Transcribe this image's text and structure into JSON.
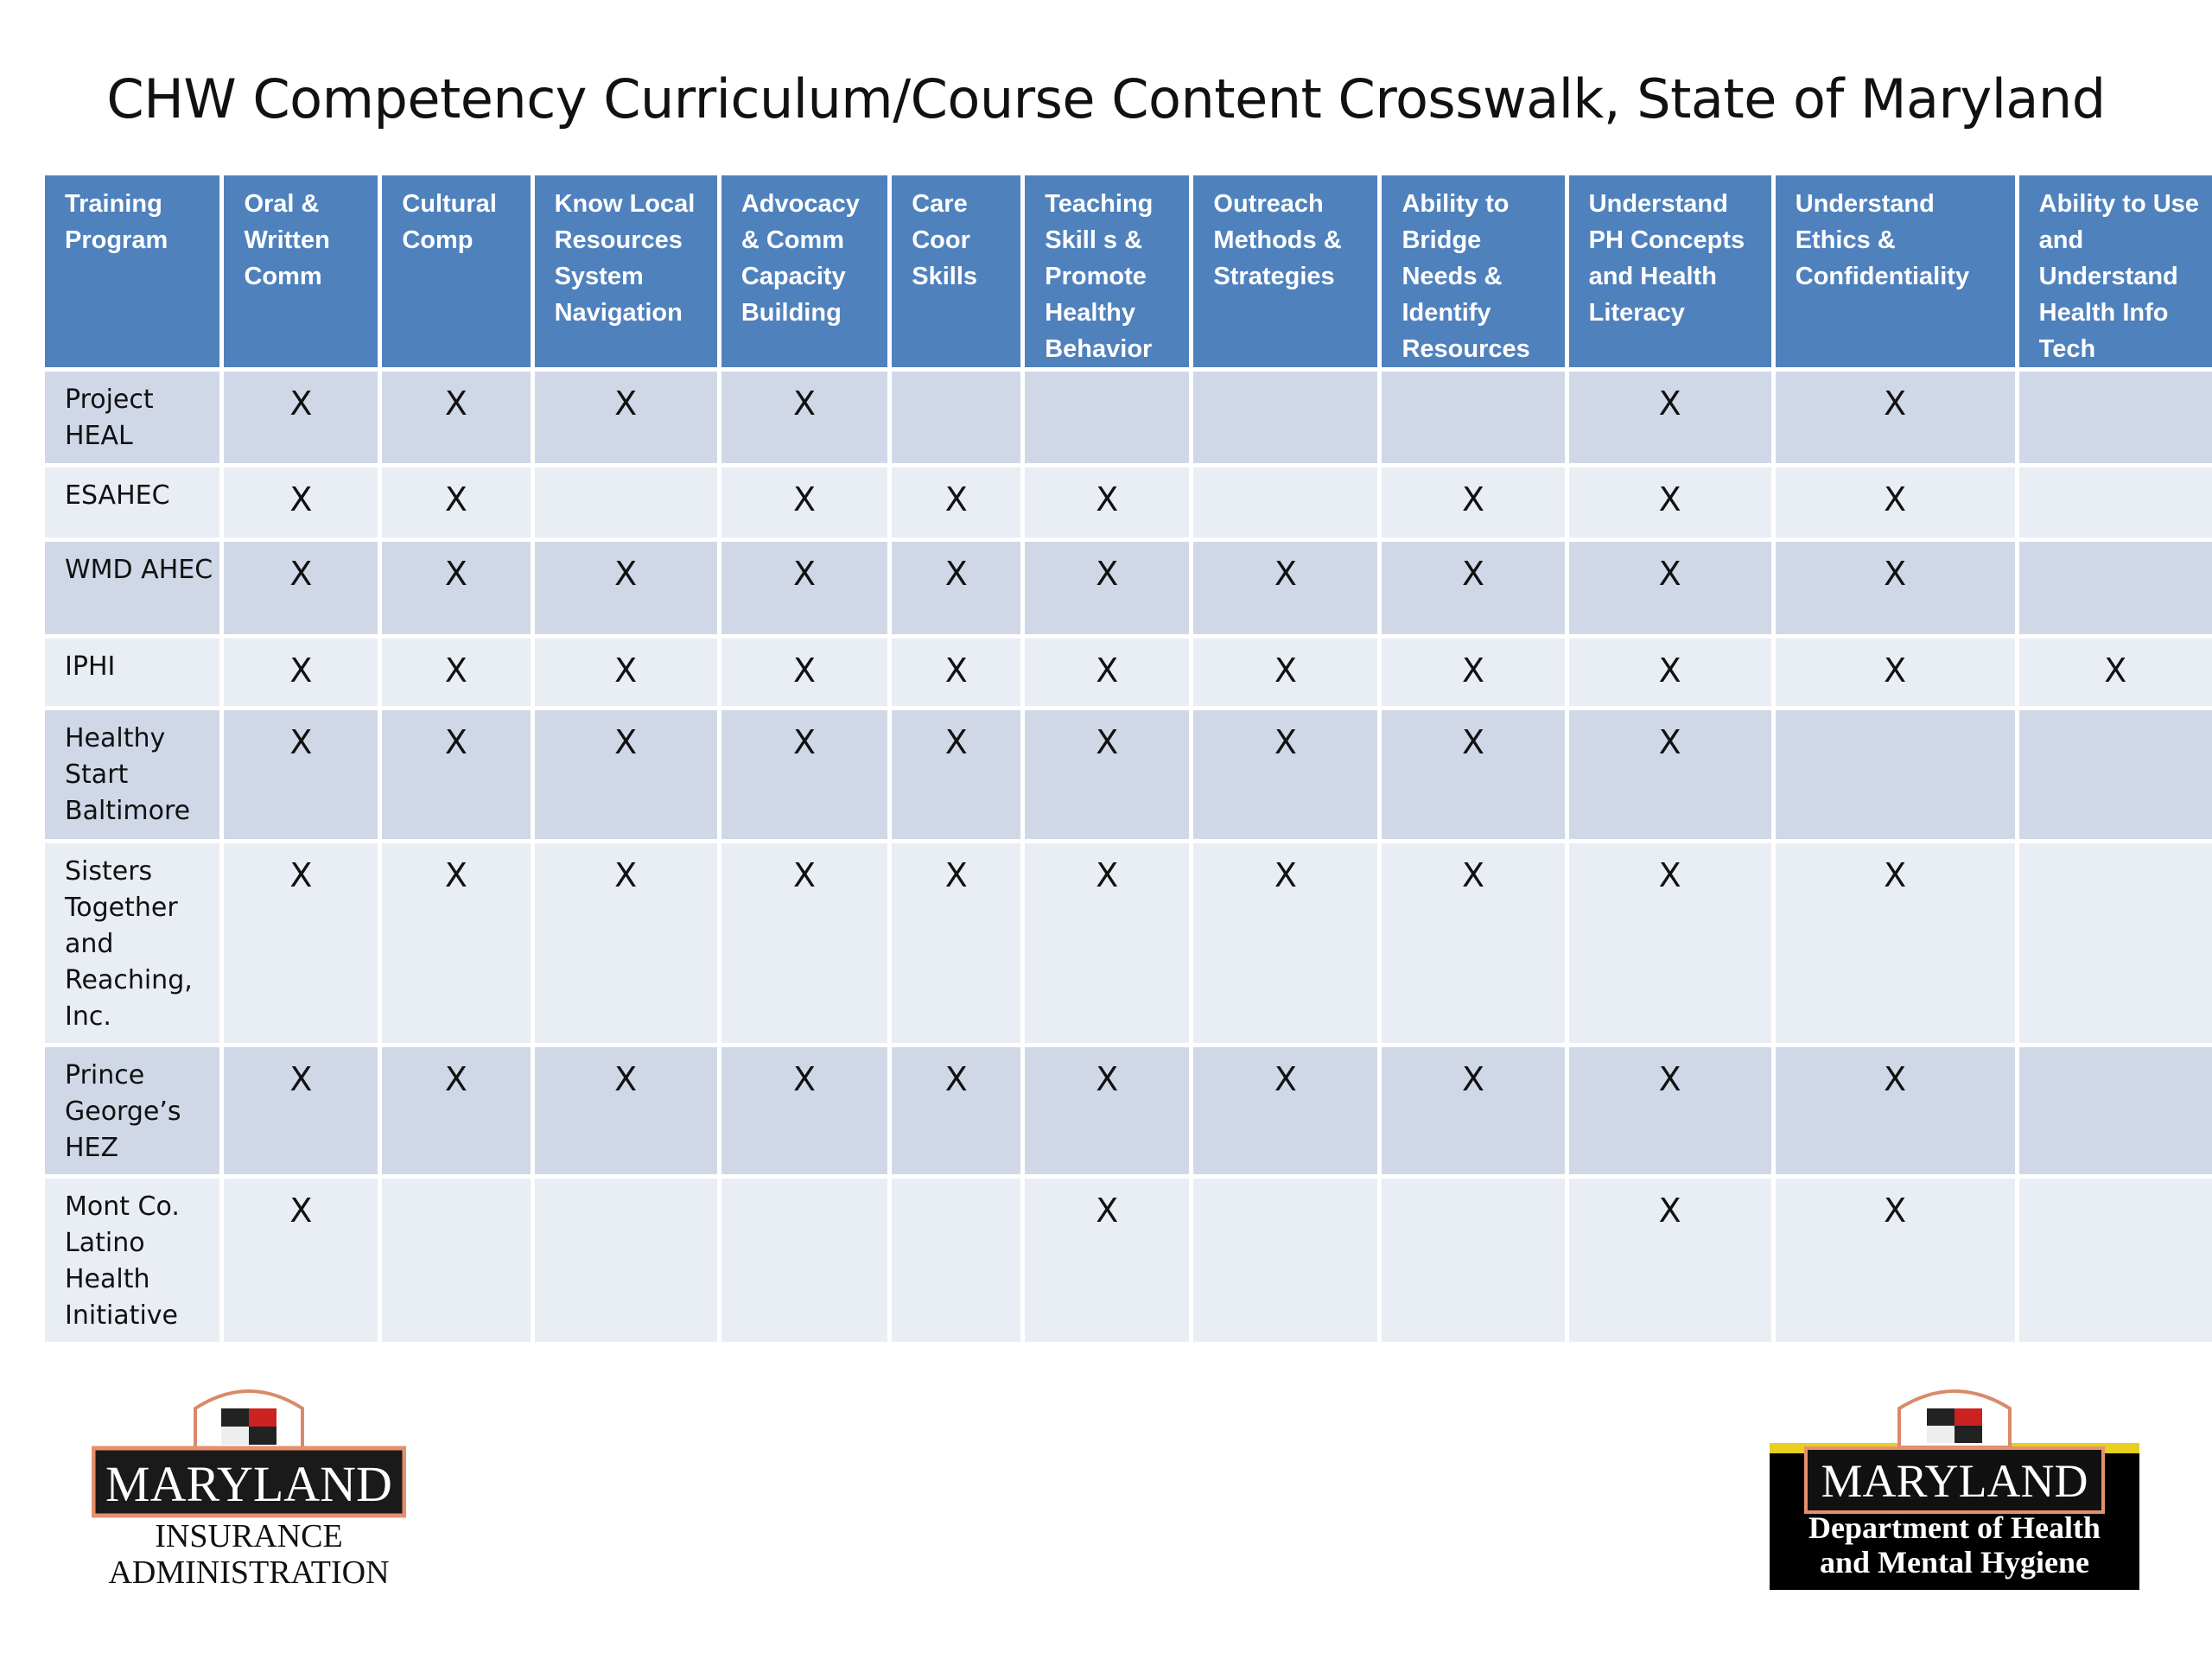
{
  "title": "CHW Competency Curriculum/Course Content Crosswalk, State of Maryland",
  "table": {
    "columns": [
      "Training Program",
      "Oral & Written Comm",
      "Cultural Comp",
      "Know Local Resources System Navigation",
      "Advocacy & Comm Capacity Building",
      "Care Coor Skills",
      "Teaching Skill s & Promote Healthy Behavior",
      "Outreach Methods & Strategies",
      "Ability to Bridge Needs & Identify Resources",
      "Understand PH Concepts and Health Literacy",
      "Understand Ethics & Confidentiality",
      "Ability to Use and Understand Health Info Tech"
    ],
    "mark": "X",
    "rows": [
      {
        "program": "Project HEAL",
        "marks": [
          "X",
          "X",
          "X",
          "X",
          "",
          "",
          "",
          "",
          "X",
          "X",
          ""
        ]
      },
      {
        "program": "ESAHEC",
        "marks": [
          "X",
          "X",
          "",
          "X",
          "X",
          "X",
          "",
          "X",
          "X",
          "X",
          ""
        ]
      },
      {
        "program": "WMD AHEC",
        "marks": [
          "X",
          "X",
          "X",
          "X",
          "X",
          "X",
          "X",
          "X",
          "X",
          "X",
          ""
        ]
      },
      {
        "program": "IPHI",
        "marks": [
          "X",
          "X",
          "X",
          "X",
          "X",
          "X",
          "X",
          "X",
          "X",
          "X",
          "X"
        ]
      },
      {
        "program": "Healthy Start Baltimore",
        "marks": [
          "X",
          "X",
          "X",
          "X",
          "X",
          "X",
          "X",
          "X",
          "X",
          "",
          ""
        ]
      },
      {
        "program": "Sisters Together and Reaching, Inc.",
        "marks": [
          "X",
          "X",
          "X",
          "X",
          "X",
          "X",
          "X",
          "X",
          "X",
          "X",
          ""
        ]
      },
      {
        "program": "Prince George’s HEZ",
        "marks": [
          "X",
          "X",
          "X",
          "X",
          "X",
          "X",
          "X",
          "X",
          "X",
          "X",
          ""
        ]
      },
      {
        "program": "Mont Co. Latino Health Initiative",
        "marks": [
          "X",
          "",
          "",
          "",
          "",
          "X",
          "",
          "",
          "X",
          "X",
          ""
        ]
      }
    ]
  },
  "logos": {
    "left": {
      "line1": "MARYLAND",
      "line2": "INSURANCE",
      "line3": "ADMINISTRATION"
    },
    "right": {
      "line1": "MARYLAND",
      "line2": "Department of Health",
      "line3": "and Mental Hygiene"
    }
  },
  "colors": {
    "header": "#4f81bd",
    "row_dark": "#d0d8e8",
    "row_light": "#e9edf4"
  }
}
